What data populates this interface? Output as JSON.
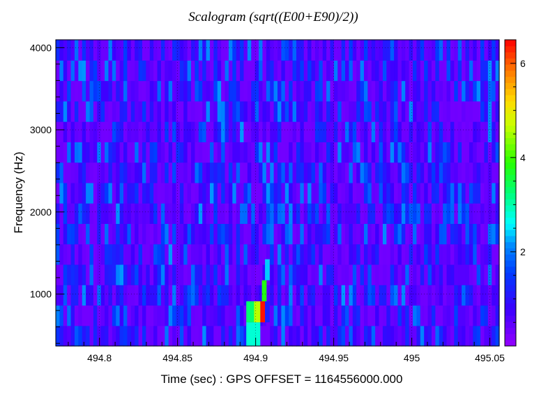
{
  "chart_data": {
    "type": "heatmap",
    "title": "Scalogram (sqrt((E00+E90)/2))",
    "xlabel": "Time (sec) : GPS OFFSET = 1164556000.000",
    "ylabel": "Frequency (Hz)",
    "xlim": [
      494.772,
      495.056
    ],
    "ylim": [
      368,
      4096
    ],
    "zlim": [
      0,
      6.5
    ],
    "x_ticks": [
      {
        "value": 494.8,
        "label": "494.8"
      },
      {
        "value": 494.85,
        "label": "494.85"
      },
      {
        "value": 494.9,
        "label": "494.9"
      },
      {
        "value": 494.95,
        "label": "494.95"
      },
      {
        "value": 495.0,
        "label": "495"
      },
      {
        "value": 495.05,
        "label": "495.05"
      }
    ],
    "y_ticks": [
      {
        "value": 1000,
        "label": "1000"
      },
      {
        "value": 2000,
        "label": "2000"
      },
      {
        "value": 3000,
        "label": "3000"
      },
      {
        "value": 4000,
        "label": "4000"
      }
    ],
    "z_ticks": [
      {
        "value": 2,
        "label": "2"
      },
      {
        "value": 4,
        "label": "4"
      },
      {
        "value": 6,
        "label": "6"
      }
    ],
    "colormap": "rainbow (violet to red)",
    "grid": true,
    "n_time_bins": 118,
    "n_freq_bands": 15,
    "background_level": [
      0.3,
      2.2
    ],
    "peaks": [
      {
        "t_start": 494.894,
        "t_end": 494.903,
        "f_start": 368,
        "f_end": 656,
        "value": 2.8
      },
      {
        "t_start": 494.894,
        "t_end": 494.903,
        "f_start": 656,
        "f_end": 912,
        "value": 3.3
      },
      {
        "t_start": 494.899,
        "t_end": 494.903,
        "f_start": 656,
        "f_end": 912,
        "value": 4.6
      },
      {
        "t_start": 494.903,
        "t_end": 494.906,
        "f_start": 656,
        "f_end": 912,
        "value": 6.4
      },
      {
        "t_start": 494.906,
        "t_end": 494.909,
        "f_start": 656,
        "f_end": 912,
        "value": 1.2
      },
      {
        "t_start": 494.904,
        "t_end": 494.907,
        "f_start": 912,
        "f_end": 1168,
        "value": 3.8
      },
      {
        "t_start": 494.906,
        "t_end": 494.909,
        "f_start": 1168,
        "f_end": 1424,
        "value": 2.4
      }
    ]
  }
}
